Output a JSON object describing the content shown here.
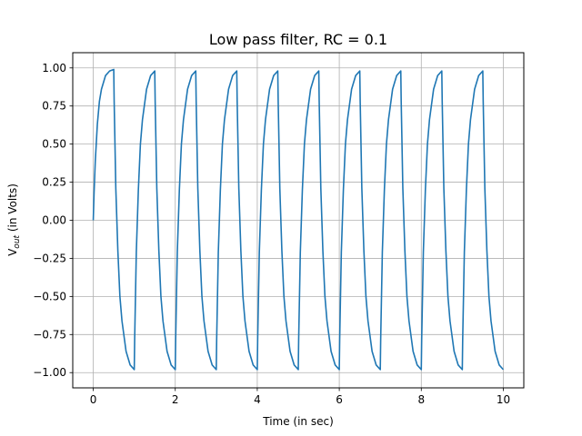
{
  "chart_data": {
    "type": "line",
    "title": "Low pass filter, RC = 0.1",
    "xlabel": "Time (in sec)",
    "ylabel_main": "V",
    "ylabel_sub": "out",
    "ylabel_rest": " (in Volts)",
    "xlim": [
      -0.5,
      10.5
    ],
    "ylim": [
      -1.1,
      1.1
    ],
    "xticks": [
      0,
      2,
      4,
      6,
      8,
      10
    ],
    "xtick_labels": [
      "0",
      "2",
      "4",
      "6",
      "8",
      "10"
    ],
    "yticks": [
      -1.0,
      -0.75,
      -0.5,
      -0.25,
      0.0,
      0.25,
      0.5,
      0.75,
      1.0
    ],
    "ytick_labels": [
      "−1.00",
      "−0.75",
      "−0.50",
      "−0.25",
      "0.00",
      "0.25",
      "0.50",
      "0.75",
      "1.00"
    ],
    "grid": true,
    "series": [
      {
        "color": "#1f77b4",
        "x": [
          0,
          0.02,
          0.05,
          0.1,
          0.15,
          0.2,
          0.3,
          0.4,
          0.5,
          0.51,
          0.55,
          0.6,
          0.65,
          0.7,
          0.8,
          0.9,
          1.0,
          1.01,
          1.05,
          1.1,
          1.15,
          1.2,
          1.3,
          1.4,
          1.5,
          1.51,
          1.55,
          1.6,
          1.65,
          1.7,
          1.8,
          1.9,
          2.0,
          2.01,
          2.05,
          2.1,
          2.15,
          2.2,
          2.3,
          2.4,
          2.5,
          2.51,
          2.55,
          2.6,
          2.65,
          2.7,
          2.8,
          2.9,
          3.0,
          3.01,
          3.05,
          3.1,
          3.15,
          3.2,
          3.3,
          3.4,
          3.5,
          3.51,
          3.55,
          3.6,
          3.65,
          3.7,
          3.8,
          3.9,
          4.0,
          4.01,
          4.05,
          4.1,
          4.15,
          4.2,
          4.3,
          4.4,
          4.5,
          4.51,
          4.55,
          4.6,
          4.65,
          4.7,
          4.8,
          4.9,
          5.0,
          5.01,
          5.05,
          5.1,
          5.15,
          5.2,
          5.3,
          5.4,
          5.5,
          5.51,
          5.55,
          5.6,
          5.65,
          5.7,
          5.8,
          5.9,
          6.0,
          6.01,
          6.05,
          6.1,
          6.15,
          6.2,
          6.3,
          6.4,
          6.5,
          6.51,
          6.55,
          6.6,
          6.65,
          6.7,
          6.8,
          6.9,
          7.0,
          7.01,
          7.05,
          7.1,
          7.15,
          7.2,
          7.3,
          7.4,
          7.5,
          7.51,
          7.55,
          7.6,
          7.65,
          7.7,
          7.8,
          7.9,
          8.0,
          8.01,
          8.05,
          8.1,
          8.15,
          8.2,
          8.3,
          8.4,
          8.5,
          8.51,
          8.55,
          8.6,
          8.65,
          8.7,
          8.8,
          8.9,
          9.0,
          9.01,
          9.05,
          9.1,
          9.15,
          9.2,
          9.3,
          9.4,
          9.5,
          9.51,
          9.55,
          9.6,
          9.65,
          9.7,
          9.8,
          9.9,
          10.0
        ],
        "y": [
          0.0,
          0.18,
          0.39,
          0.63,
          0.78,
          0.86,
          0.95,
          0.98,
          0.99,
          0.78,
          0.21,
          -0.2,
          -0.5,
          -0.66,
          -0.86,
          -0.95,
          -0.98,
          -0.78,
          -0.21,
          0.2,
          0.5,
          0.66,
          0.86,
          0.95,
          0.98,
          0.78,
          0.21,
          -0.2,
          -0.5,
          -0.66,
          -0.86,
          -0.95,
          -0.98,
          -0.78,
          -0.21,
          0.2,
          0.5,
          0.66,
          0.86,
          0.95,
          0.98,
          0.78,
          0.21,
          -0.2,
          -0.5,
          -0.66,
          -0.86,
          -0.95,
          -0.98,
          -0.78,
          -0.21,
          0.2,
          0.5,
          0.66,
          0.86,
          0.95,
          0.98,
          0.78,
          0.21,
          -0.2,
          -0.5,
          -0.66,
          -0.86,
          -0.95,
          -0.98,
          -0.78,
          -0.21,
          0.2,
          0.5,
          0.66,
          0.86,
          0.95,
          0.98,
          0.78,
          0.21,
          -0.2,
          -0.5,
          -0.66,
          -0.86,
          -0.95,
          -0.98,
          -0.78,
          -0.21,
          0.2,
          0.5,
          0.66,
          0.86,
          0.95,
          0.98,
          0.78,
          0.21,
          -0.2,
          -0.5,
          -0.66,
          -0.86,
          -0.95,
          -0.98,
          -0.78,
          -0.21,
          0.2,
          0.5,
          0.66,
          0.86,
          0.95,
          0.98,
          0.78,
          0.21,
          -0.2,
          -0.5,
          -0.66,
          -0.86,
          -0.95,
          -0.98,
          -0.78,
          -0.21,
          0.2,
          0.5,
          0.66,
          0.86,
          0.95,
          0.98,
          0.78,
          0.21,
          -0.2,
          -0.5,
          -0.66,
          -0.86,
          -0.95,
          -0.98,
          -0.78,
          -0.21,
          0.2,
          0.5,
          0.66,
          0.86,
          0.95,
          0.98,
          0.78,
          0.21,
          -0.2,
          -0.5,
          -0.66,
          -0.86,
          -0.95,
          -0.98,
          -0.78,
          -0.21,
          0.2,
          0.5,
          0.66,
          0.86,
          0.95,
          0.98,
          0.78,
          0.21,
          -0.2,
          -0.5,
          -0.66,
          -0.86,
          -0.95,
          -0.98
        ]
      }
    ]
  }
}
